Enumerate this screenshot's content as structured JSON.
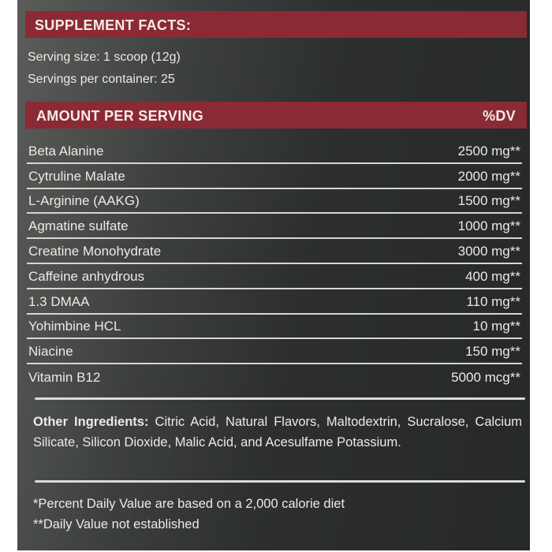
{
  "header": {
    "title": "SUPPLEMENT FACTS:"
  },
  "serving": {
    "size": "Serving size: 1 scoop (12g)",
    "per_container": "Servings per container: 25"
  },
  "table": {
    "header_left": "AMOUNT PER SERVING",
    "header_right": "%DV",
    "rows": [
      {
        "name": "Beta Alanine",
        "amount": "2500 mg**"
      },
      {
        "name": "Cytruline Malate",
        "amount": "2000 mg**"
      },
      {
        "name": "L-Arginine (AAKG)",
        "amount": "1500 mg**"
      },
      {
        "name": "Agmatine sulfate",
        "amount": "1000 mg**"
      },
      {
        "name": "Creatine Monohydrate",
        "amount": "3000 mg**"
      },
      {
        "name": "Caffeine anhydrous",
        "amount": "400 mg**"
      },
      {
        "name": "1.3 DMAA",
        "amount": "110 mg**"
      },
      {
        "name": "Yohimbine HCL",
        "amount": "10 mg**"
      },
      {
        "name": "Niacine",
        "amount": "150 mg**"
      },
      {
        "name": "Vitamin B12",
        "amount": "5000 mcg**"
      }
    ]
  },
  "other": {
    "label": "Other Ingredients:",
    "text": " Citric Acid, Natural Flavors, Maltodextrin, Sucralose, Calcium Silicate, Silicon Dioxide, Malic Acid, and Acesulfame Potassium."
  },
  "footnotes": {
    "dv": "*Percent Daily Value are based on a 2,000 calorie diet",
    "not_established": "**Daily Value not established"
  },
  "colors": {
    "bar": "#8a2a35",
    "background": "#2c2f2e",
    "text": "#eceae6"
  }
}
